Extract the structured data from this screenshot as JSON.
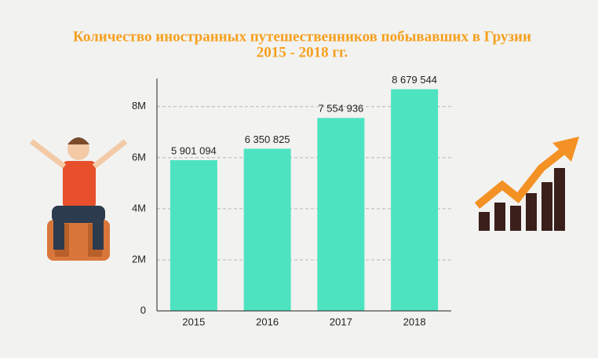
{
  "chart_data": {
    "type": "bar",
    "title": "Количество иностранных путешественников побывавших в Грузии",
    "subtitle": "2015 - 2018 гг.",
    "categories": [
      "2015",
      "2016",
      "2017",
      "2018"
    ],
    "values": [
      5901094,
      6350825,
      7554936,
      8679544
    ],
    "value_labels": [
      "5 901 094",
      "6 350 825",
      "7 554 936",
      "8 679 544"
    ],
    "color": "#4de3c1",
    "ylim": [
      0,
      9100000
    ],
    "yticks": [
      0,
      {
        "value": 2000000,
        "label": "2M"
      },
      {
        "value": 4000000,
        "label": "4M"
      },
      {
        "value": 6000000,
        "label": "6M"
      },
      {
        "value": 8000000,
        "label": "8M"
      }
    ],
    "grid": true
  }
}
